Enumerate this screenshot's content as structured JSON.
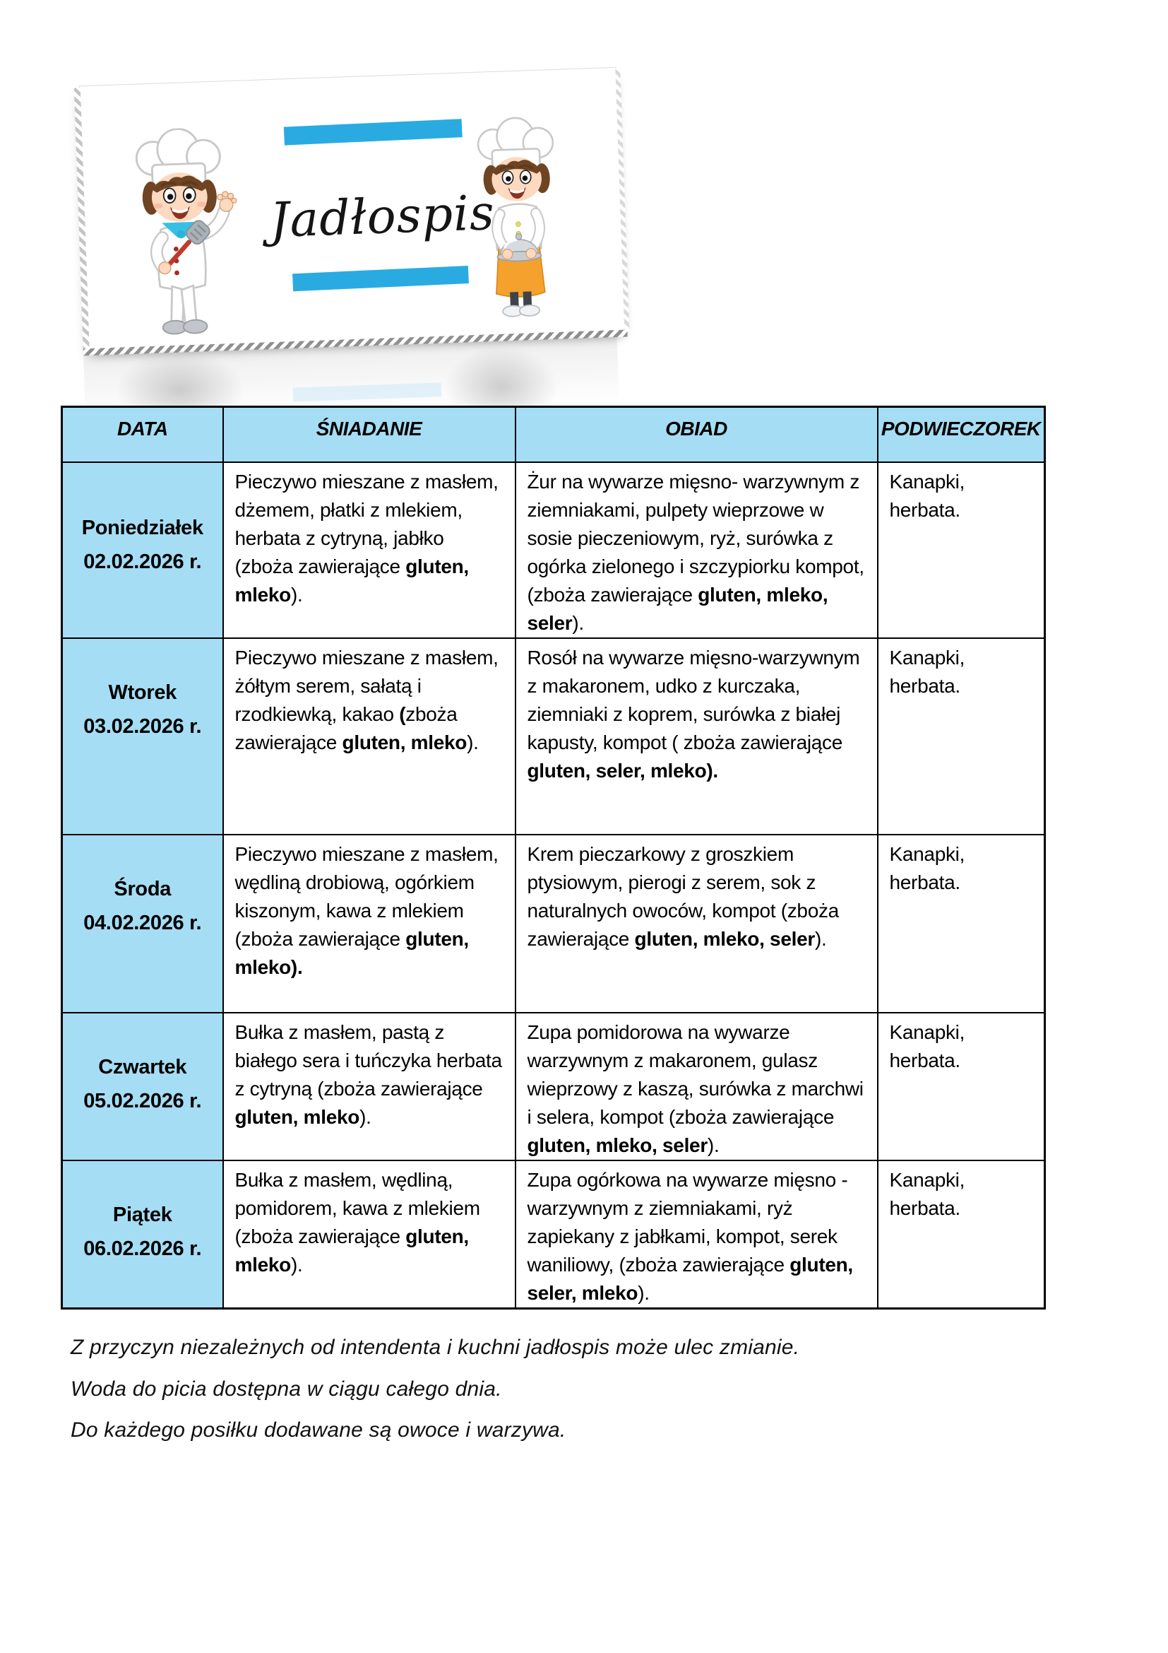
{
  "header_card": {
    "title": "Jadłospis",
    "left_icon": "chef-boy-spatula-icon",
    "right_icon": "chef-boy-cloche-icon"
  },
  "colors": {
    "accent_blue": "#29abe2",
    "table_fill": "#a5ddf4",
    "border": "#000000",
    "apron_orange": "#f4a22d"
  },
  "menu_table": {
    "headers": [
      "DATA",
      "ŚNIADANIE",
      "OBIAD",
      "PODWIECZOREK"
    ],
    "rows": [
      {
        "day": "Poniedziałek",
        "date": "02.02.2026 r.",
        "breakfast": [
          {
            "t": "Pieczywo mieszane z masłem, dżemem, płatki z mlekiem, herbata z cytryną, jabłko (zboża zawierające ",
            "b": false
          },
          {
            "t": "gluten, mleko",
            "b": true
          },
          {
            "t": ").",
            "b": false
          }
        ],
        "dinner": [
          {
            "t": "Żur na wywarze mięsno- warzywnym z ziemniakami, pulpety wieprzowe w sosie pieczeniowym, ryż, surówka z ogórka zielonego i szczypiorku kompot, (zboża zawierające ",
            "b": false
          },
          {
            "t": "gluten, mleko, seler",
            "b": true
          },
          {
            "t": ").",
            "b": false
          }
        ],
        "snack": "Kanapki, herbata."
      },
      {
        "day": "Wtorek",
        "date": "03.02.2026 r.",
        "breakfast": [
          {
            "t": "Pieczywo mieszane z masłem, żółtym serem, sałatą i rzodkiewką, kakao ",
            "b": false
          },
          {
            "t": "(",
            "b": true
          },
          {
            "t": "zboża zawierające ",
            "b": false
          },
          {
            "t": "gluten, mleko",
            "b": true
          },
          {
            "t": ").",
            "b": false
          }
        ],
        "dinner": [
          {
            "t": "Rosół na wywarze mięsno-warzywnym z makaronem, udko z kurczaka, ziemniaki z koprem, surówka z białej kapusty, kompot ( zboża zawierające ",
            "b": false
          },
          {
            "t": "gluten, seler, mleko).",
            "b": true
          }
        ],
        "snack": "Kanapki, herbata."
      },
      {
        "day": "Środa",
        "date": "04.02.2026 r.",
        "breakfast": [
          {
            "t": "Pieczywo mieszane z masłem, wędliną drobiową, ogórkiem kiszonym, kawa z mlekiem (zboża zawierające ",
            "b": false
          },
          {
            "t": "gluten, mleko).",
            "b": true
          }
        ],
        "dinner": [
          {
            "t": "Krem pieczarkowy z groszkiem ptysiowym, pierogi z serem, sok z naturalnych owoców, kompot (zboża zawierające ",
            "b": false
          },
          {
            "t": "gluten, mleko, seler",
            "b": true
          },
          {
            "t": ").",
            "b": false
          }
        ],
        "snack": "Kanapki, herbata."
      },
      {
        "day": "Czwartek",
        "date": "05.02.2026 r.",
        "breakfast": [
          {
            "t": "Bułka z masłem, pastą z białego sera i tuńczyka herbata z cytryną (zboża zawierające ",
            "b": false
          },
          {
            "t": "gluten, mleko",
            "b": true
          },
          {
            "t": ").",
            "b": false
          }
        ],
        "dinner": [
          {
            "t": "Zupa pomidorowa na wywarze warzywnym z makaronem, gulasz wieprzowy z kaszą, surówka z marchwi i selera, kompot (zboża zawierające ",
            "b": false
          },
          {
            "t": "gluten, mleko, seler",
            "b": true
          },
          {
            "t": ").",
            "b": false
          }
        ],
        "snack": "Kanapki, herbata."
      },
      {
        "day": "Piątek",
        "date": "06.02.2026 r.",
        "breakfast": [
          {
            "t": "Bułka z masłem, wędliną, pomidorem, kawa z mlekiem (zboża zawierające ",
            "b": false
          },
          {
            "t": "gluten, mleko",
            "b": true
          },
          {
            "t": ").",
            "b": false
          }
        ],
        "dinner": [
          {
            "t": "Zupa ogórkowa na wywarze mięsno - warzywnym z ziemniakami, ryż zapiekany z jabłkami, kompot, serek waniliowy, (zboża zawierające ",
            "b": false
          },
          {
            "t": "gluten, seler, mleko",
            "b": true
          },
          {
            "t": ").",
            "b": false
          }
        ],
        "snack": "Kanapki, herbata."
      }
    ]
  },
  "notes": [
    "Z przyczyn niezależnych od intendenta i kuchni jadłospis może ulec zmianie.",
    "Woda do picia dostępna w ciągu całego dnia.",
    "Do każdego posiłku dodawane są owoce i warzywa."
  ]
}
